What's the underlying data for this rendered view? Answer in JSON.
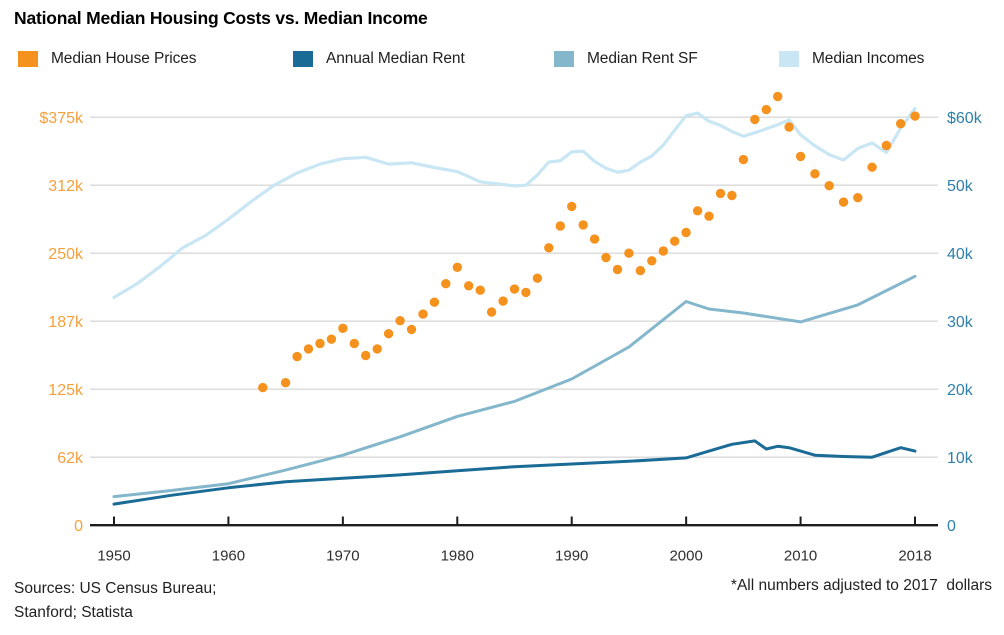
{
  "title": "National Median Housing Costs vs. Median Income",
  "footer": {
    "sources_line1": "Sources: US Census Bureau;",
    "sources_line2": "Stanford; Statista",
    "note": "*All numbers adjusted to 2017  dollars"
  },
  "colors": {
    "house_prices": "#F5921E",
    "annual_median_rent": "#1A6B95",
    "median_rent_sf": "#84B6CC",
    "median_incomes": "#C9E6F5",
    "left_axis_text": "#F5A03C",
    "right_axis_text": "#2F80AB",
    "gridline": "#D9D9D9",
    "axis": "#1C1C1C"
  },
  "chart_data": {
    "type": "line+scatter",
    "title": "National Median Housing Costs vs. Median Income",
    "grid": true,
    "x_ticks": [
      "1950",
      "1960",
      "1970",
      "1980",
      "1990",
      "2000",
      "2010",
      "2018"
    ],
    "left_axis_labels": [
      "$375k",
      "312k",
      "250k",
      "187k",
      "125k",
      "62k",
      "0"
    ],
    "right_axis_labels": [
      "$60k",
      "50k",
      "40k",
      "30k",
      "20k",
      "10k",
      "0"
    ],
    "left_axis_max": 375000,
    "right_axis_max": 60000,
    "series": [
      {
        "name": "Median House Prices",
        "type": "scatter",
        "axis": "left",
        "color": "#F5921E",
        "points": [
          [
            1963,
            126500
          ],
          [
            1965,
            131000
          ],
          [
            1966,
            155000
          ],
          [
            1967,
            162000
          ],
          [
            1968,
            167000
          ],
          [
            1969,
            171000
          ],
          [
            1970,
            181000
          ],
          [
            1971,
            167000
          ],
          [
            1972,
            156000
          ],
          [
            1973,
            162000
          ],
          [
            1974,
            176000
          ],
          [
            1975,
            188000
          ],
          [
            1976,
            180000
          ],
          [
            1977,
            194000
          ],
          [
            1978,
            205000
          ],
          [
            1979,
            222000
          ],
          [
            1980,
            237000
          ],
          [
            1981,
            220000
          ],
          [
            1982,
            216000
          ],
          [
            1983,
            196000
          ],
          [
            1984,
            206000
          ],
          [
            1985,
            217000
          ],
          [
            1986,
            214000
          ],
          [
            1987,
            227000
          ],
          [
            1988,
            255000
          ],
          [
            1989,
            275000
          ],
          [
            1990,
            293000
          ],
          [
            1991,
            276000
          ],
          [
            1992,
            263000
          ],
          [
            1993,
            246000
          ],
          [
            1994,
            235000
          ],
          [
            1995,
            250000
          ],
          [
            1996,
            234000
          ],
          [
            1997,
            243000
          ],
          [
            1998,
            252000
          ],
          [
            1999,
            261000
          ],
          [
            2000,
            269000
          ],
          [
            2001,
            289000
          ],
          [
            2002,
            284000
          ],
          [
            2003,
            305000
          ],
          [
            2004,
            303000
          ],
          [
            2005,
            336000
          ],
          [
            2006,
            373000
          ],
          [
            2007,
            382000
          ],
          [
            2008,
            394000
          ],
          [
            2009,
            366000
          ],
          [
            2010,
            339000
          ],
          [
            2011,
            323000
          ],
          [
            2012,
            312000
          ],
          [
            2013,
            297000
          ],
          [
            2014,
            301000
          ],
          [
            2015,
            329000
          ],
          [
            2016,
            349000
          ],
          [
            2017,
            369000
          ],
          [
            2018,
            376000
          ]
        ]
      },
      {
        "name": "Annual Median Rent",
        "type": "line",
        "axis": "right",
        "color": "#1A6B95",
        "points": [
          [
            1950,
            3100
          ],
          [
            1955,
            4400
          ],
          [
            1960,
            5500
          ],
          [
            1965,
            6400
          ],
          [
            1970,
            6900
          ],
          [
            1975,
            7400
          ],
          [
            1980,
            8000
          ],
          [
            1985,
            8600
          ],
          [
            1990,
            9000
          ],
          [
            1995,
            9400
          ],
          [
            2000,
            9900
          ],
          [
            2002,
            10900
          ],
          [
            2004,
            11900
          ],
          [
            2006,
            12400
          ],
          [
            2007,
            11200
          ],
          [
            2008,
            11600
          ],
          [
            2009,
            11400
          ],
          [
            2011,
            10300
          ],
          [
            2013,
            10100
          ],
          [
            2015,
            10000
          ],
          [
            2017,
            11400
          ],
          [
            2018,
            10900
          ]
        ]
      },
      {
        "name": "Median Rent SF",
        "type": "line",
        "axis": "right",
        "color": "#84B6CC",
        "points": [
          [
            1950,
            4200
          ],
          [
            1955,
            5100
          ],
          [
            1960,
            6100
          ],
          [
            1965,
            8100
          ],
          [
            1970,
            10300
          ],
          [
            1975,
            13000
          ],
          [
            1980,
            16000
          ],
          [
            1985,
            18200
          ],
          [
            1990,
            21500
          ],
          [
            1995,
            26200
          ],
          [
            2000,
            32900
          ],
          [
            2002,
            31800
          ],
          [
            2005,
            31200
          ],
          [
            2010,
            29900
          ],
          [
            2014,
            32400
          ],
          [
            2018,
            36600
          ]
        ]
      },
      {
        "name": "Median Incomes",
        "type": "line",
        "axis": "right",
        "color": "#C9E6F5",
        "points": [
          [
            1950,
            33500
          ],
          [
            1952,
            35500
          ],
          [
            1954,
            38000
          ],
          [
            1956,
            40800
          ],
          [
            1958,
            42600
          ],
          [
            1960,
            45000
          ],
          [
            1962,
            47600
          ],
          [
            1964,
            50000
          ],
          [
            1966,
            51800
          ],
          [
            1968,
            53100
          ],
          [
            1970,
            53900
          ],
          [
            1972,
            54100
          ],
          [
            1974,
            53100
          ],
          [
            1976,
            53300
          ],
          [
            1978,
            52600
          ],
          [
            1980,
            52000
          ],
          [
            1982,
            50500
          ],
          [
            1984,
            50100
          ],
          [
            1985,
            49900
          ],
          [
            1986,
            50000
          ],
          [
            1987,
            51500
          ],
          [
            1988,
            53400
          ],
          [
            1989,
            53600
          ],
          [
            1990,
            54900
          ],
          [
            1991,
            55000
          ],
          [
            1992,
            53500
          ],
          [
            1993,
            52500
          ],
          [
            1994,
            51900
          ],
          [
            1995,
            52200
          ],
          [
            1996,
            53400
          ],
          [
            1997,
            54300
          ],
          [
            1998,
            55900
          ],
          [
            1999,
            58100
          ],
          [
            2000,
            60200
          ],
          [
            2001,
            60600
          ],
          [
            2002,
            59400
          ],
          [
            2003,
            58800
          ],
          [
            2004,
            57900
          ],
          [
            2005,
            57200
          ],
          [
            2006,
            57700
          ],
          [
            2007,
            58300
          ],
          [
            2008,
            58900
          ],
          [
            2009,
            59600
          ],
          [
            2010,
            57400
          ],
          [
            2011,
            55800
          ],
          [
            2012,
            54500
          ],
          [
            2013,
            53700
          ],
          [
            2014,
            55400
          ],
          [
            2015,
            56200
          ],
          [
            2016,
            54800
          ],
          [
            2017,
            58400
          ],
          [
            2018,
            61300
          ]
        ]
      }
    ]
  }
}
